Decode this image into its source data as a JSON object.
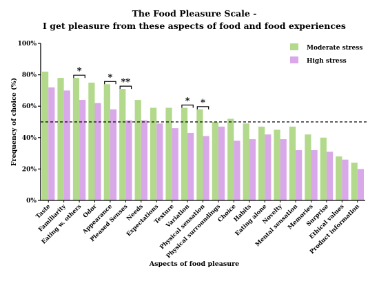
{
  "chart_data": {
    "type": "bar",
    "title": "The Food Pleasure Scale -",
    "subtitle": "I get pleasure from these aspects of food and food experiences",
    "xlabel": "Aspects of food pleasure",
    "ylabel": "Frequency of choice (%)",
    "ylim": [
      0,
      100
    ],
    "ytick_values": [
      0,
      20,
      40,
      60,
      80,
      100
    ],
    "ytick_labels": [
      "0%",
      "20%",
      "40%",
      "60%",
      "80%",
      "100%"
    ],
    "grid": false,
    "legend_position": "top-right",
    "reference_line": {
      "value": 50,
      "style": "dashed"
    },
    "categories": [
      "Taste",
      "Familiarity",
      "Eating w. others",
      "Odor",
      "Appearance",
      "Pleased Senses",
      "Needs",
      "Expectations",
      "Texture",
      "Variation",
      "Physical sensation",
      "Physical surroundings",
      "Choice",
      "Habits",
      "Eating alone",
      "Novelty",
      "Mental sensation",
      "Memories",
      "Surprise",
      "Ethical values",
      "Product information"
    ],
    "series": [
      {
        "name": "Moderate stress",
        "color": "#b3d98c",
        "values": [
          82,
          78,
          78,
          75,
          74,
          71,
          64,
          59,
          59,
          59,
          58,
          50,
          52,
          49,
          47,
          45,
          47,
          42,
          40,
          28,
          24
        ]
      },
      {
        "name": "High stress",
        "color": "#d9a8e8",
        "values": [
          72,
          70,
          64,
          62,
          58,
          51,
          51,
          49,
          46,
          43,
          41,
          47,
          38,
          39,
          42,
          39,
          32,
          32,
          31,
          26,
          20
        ]
      }
    ],
    "significance": [
      {
        "category": "Eating w. others",
        "label": "*"
      },
      {
        "category": "Appearance",
        "label": "*"
      },
      {
        "category": "Pleased Senses",
        "label": "**"
      },
      {
        "category": "Variation",
        "label": "*"
      },
      {
        "category": "Physical sensation",
        "label": "*"
      }
    ]
  }
}
